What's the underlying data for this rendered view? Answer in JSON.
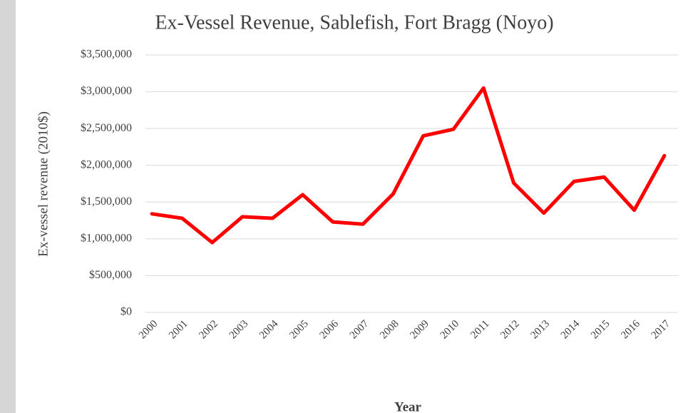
{
  "chart_data": {
    "type": "line",
    "title": "Ex-Vessel Revenue, Sablefish, Fort Bragg (Noyo)",
    "x_label": "Year",
    "y_label": "Ex-vessel revenue (2010$)",
    "categories": [
      "2000",
      "2001",
      "2002",
      "2003",
      "2004",
      "2005",
      "2006",
      "2007",
      "2008",
      "2009",
      "2010",
      "2011",
      "2012",
      "2013",
      "2014",
      "2015",
      "2016",
      "2017"
    ],
    "series": [
      {
        "name": "Ex-vessel revenue",
        "color": "#ff0000",
        "values": [
          1340000,
          1280000,
          950000,
          1300000,
          1280000,
          1600000,
          1230000,
          1200000,
          1610000,
          2400000,
          2490000,
          3050000,
          1760000,
          1350000,
          1780000,
          1840000,
          1390000,
          2130000
        ]
      }
    ],
    "ylim": [
      0,
      3500000
    ],
    "yticks": [
      {
        "value": 0,
        "label": "$0"
      },
      {
        "value": 500000,
        "label": "$500,000"
      },
      {
        "value": 1000000,
        "label": "$1,000,000"
      },
      {
        "value": 1500000,
        "label": "$1,500,000"
      },
      {
        "value": 2000000,
        "label": "$2,000,000"
      },
      {
        "value": 2500000,
        "label": "$2,500,000"
      },
      {
        "value": 3000000,
        "label": "$3,000,000"
      },
      {
        "value": 3500000,
        "label": "$3,500,000"
      }
    ],
    "grid": true
  }
}
